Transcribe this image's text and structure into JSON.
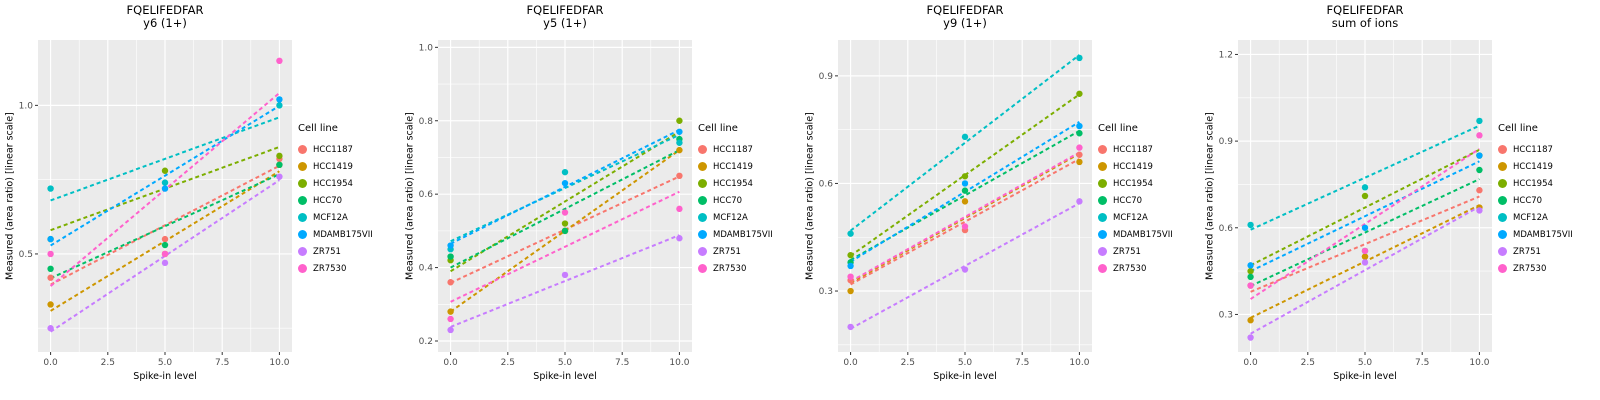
{
  "legend": {
    "title": "Cell line"
  },
  "xlabel": "Spike-in level",
  "ylabel": "Measured (area ratio) [linear scale]",
  "x_values": [
    0,
    5,
    10
  ],
  "x_range": [
    -0.55,
    10.55
  ],
  "x_ticks": {
    "values": [
      0,
      2.5,
      5,
      7.5,
      10
    ],
    "labels": [
      "0.0",
      "2.5",
      "5.0",
      "7.5",
      "10.0"
    ]
  },
  "panel_background": "#EBEBEB",
  "cell_lines": [
    {
      "name": "HCC1187",
      "color": "#F8766D"
    },
    {
      "name": "HCC1419",
      "color": "#CD9600"
    },
    {
      "name": "HCC1954",
      "color": "#7CAE00"
    },
    {
      "name": "HCC70",
      "color": "#00BE67"
    },
    {
      "name": "MCF12A",
      "color": "#00BFC4"
    },
    {
      "name": "MDAMB175VII",
      "color": "#00A9FF"
    },
    {
      "name": "ZR751",
      "color": "#C77CFF"
    },
    {
      "name": "ZR7530",
      "color": "#FF61CC"
    }
  ],
  "chart_data": [
    {
      "type": "scatter",
      "title": "FQELIFEDFAR",
      "subtitle": "y6 (1+)",
      "ylim": [
        0.17,
        1.22
      ],
      "y_ticks": {
        "values": [
          0.5,
          1.0
        ],
        "labels": [
          "0.5",
          "1.0"
        ]
      },
      "series": [
        {
          "name": "HCC1187",
          "values": [
            0.42,
            0.55,
            0.82
          ]
        },
        {
          "name": "HCC1419",
          "values": [
            0.33,
            0.5,
            0.8
          ]
        },
        {
          "name": "HCC1954",
          "values": [
            0.55,
            0.78,
            0.83
          ]
        },
        {
          "name": "HCC70",
          "values": [
            0.45,
            0.53,
            0.8
          ]
        },
        {
          "name": "MCF12A",
          "values": [
            0.72,
            0.74,
            1.0
          ]
        },
        {
          "name": "MDAMB175VII",
          "values": [
            0.55,
            0.72,
            1.02
          ]
        },
        {
          "name": "ZR751",
          "values": [
            0.25,
            0.47,
            0.76
          ]
        },
        {
          "name": "ZR7530",
          "values": [
            0.5,
            0.5,
            1.15
          ]
        }
      ]
    },
    {
      "type": "scatter",
      "title": "FQELIFEDFAR",
      "subtitle": "y5 (1+)",
      "ylim": [
        0.17,
        1.02
      ],
      "y_ticks": {
        "values": [
          0.2,
          0.4,
          0.6,
          0.8,
          1.0
        ],
        "labels": [
          "0.2",
          "0.4",
          "0.6",
          "0.8",
          "1.0"
        ]
      },
      "series": [
        {
          "name": "HCC1187",
          "values": [
            0.36,
            0.5,
            0.65
          ]
        },
        {
          "name": "HCC1419",
          "values": [
            0.28,
            0.5,
            0.72
          ]
        },
        {
          "name": "HCC1954",
          "values": [
            0.42,
            0.52,
            0.8
          ]
        },
        {
          "name": "HCC70",
          "values": [
            0.43,
            0.5,
            0.75
          ]
        },
        {
          "name": "MCF12A",
          "values": [
            0.45,
            0.66,
            0.74
          ]
        },
        {
          "name": "MDAMB175VII",
          "values": [
            0.46,
            0.63,
            0.77
          ]
        },
        {
          "name": "ZR751",
          "values": [
            0.23,
            0.38,
            0.48
          ]
        },
        {
          "name": "ZR7530",
          "values": [
            0.26,
            0.55,
            0.56
          ]
        }
      ]
    },
    {
      "type": "scatter",
      "title": "FQELIFEDFAR",
      "subtitle": "y9 (1+)",
      "ylim": [
        0.13,
        1.0
      ],
      "y_ticks": {
        "values": [
          0.3,
          0.6,
          0.9
        ],
        "labels": [
          "0.3",
          "0.6",
          "0.9"
        ]
      },
      "series": [
        {
          "name": "HCC1187",
          "values": [
            0.33,
            0.47,
            0.68
          ]
        },
        {
          "name": "HCC1419",
          "values": [
            0.3,
            0.55,
            0.66
          ]
        },
        {
          "name": "HCC1954",
          "values": [
            0.4,
            0.62,
            0.85
          ]
        },
        {
          "name": "HCC70",
          "values": [
            0.38,
            0.58,
            0.74
          ]
        },
        {
          "name": "MCF12A",
          "values": [
            0.46,
            0.73,
            0.95
          ]
        },
        {
          "name": "MDAMB175VII",
          "values": [
            0.37,
            0.6,
            0.76
          ]
        },
        {
          "name": "ZR751",
          "values": [
            0.2,
            0.36,
            0.55
          ]
        },
        {
          "name": "ZR7530",
          "values": [
            0.34,
            0.48,
            0.7
          ]
        }
      ]
    },
    {
      "type": "scatter",
      "title": "FQELIFEDFAR",
      "subtitle": "sum of ions",
      "ylim": [
        0.17,
        1.25
      ],
      "y_ticks": {
        "values": [
          0.3,
          0.6,
          0.9,
          1.2
        ],
        "labels": [
          "0.3",
          "0.6",
          "0.9",
          "1.2"
        ]
      },
      "series": [
        {
          "name": "HCC1187",
          "values": [
            0.4,
            0.5,
            0.73
          ]
        },
        {
          "name": "HCC1419",
          "values": [
            0.28,
            0.5,
            0.67
          ]
        },
        {
          "name": "HCC1954",
          "values": [
            0.45,
            0.71,
            0.85
          ]
        },
        {
          "name": "HCC70",
          "values": [
            0.43,
            0.52,
            0.8
          ]
        },
        {
          "name": "MCF12A",
          "values": [
            0.61,
            0.74,
            0.97
          ]
        },
        {
          "name": "MDAMB175VII",
          "values": [
            0.47,
            0.6,
            0.85
          ]
        },
        {
          "name": "ZR751",
          "values": [
            0.22,
            0.48,
            0.66
          ]
        },
        {
          "name": "ZR7530",
          "values": [
            0.4,
            0.52,
            0.92
          ]
        }
      ]
    }
  ]
}
